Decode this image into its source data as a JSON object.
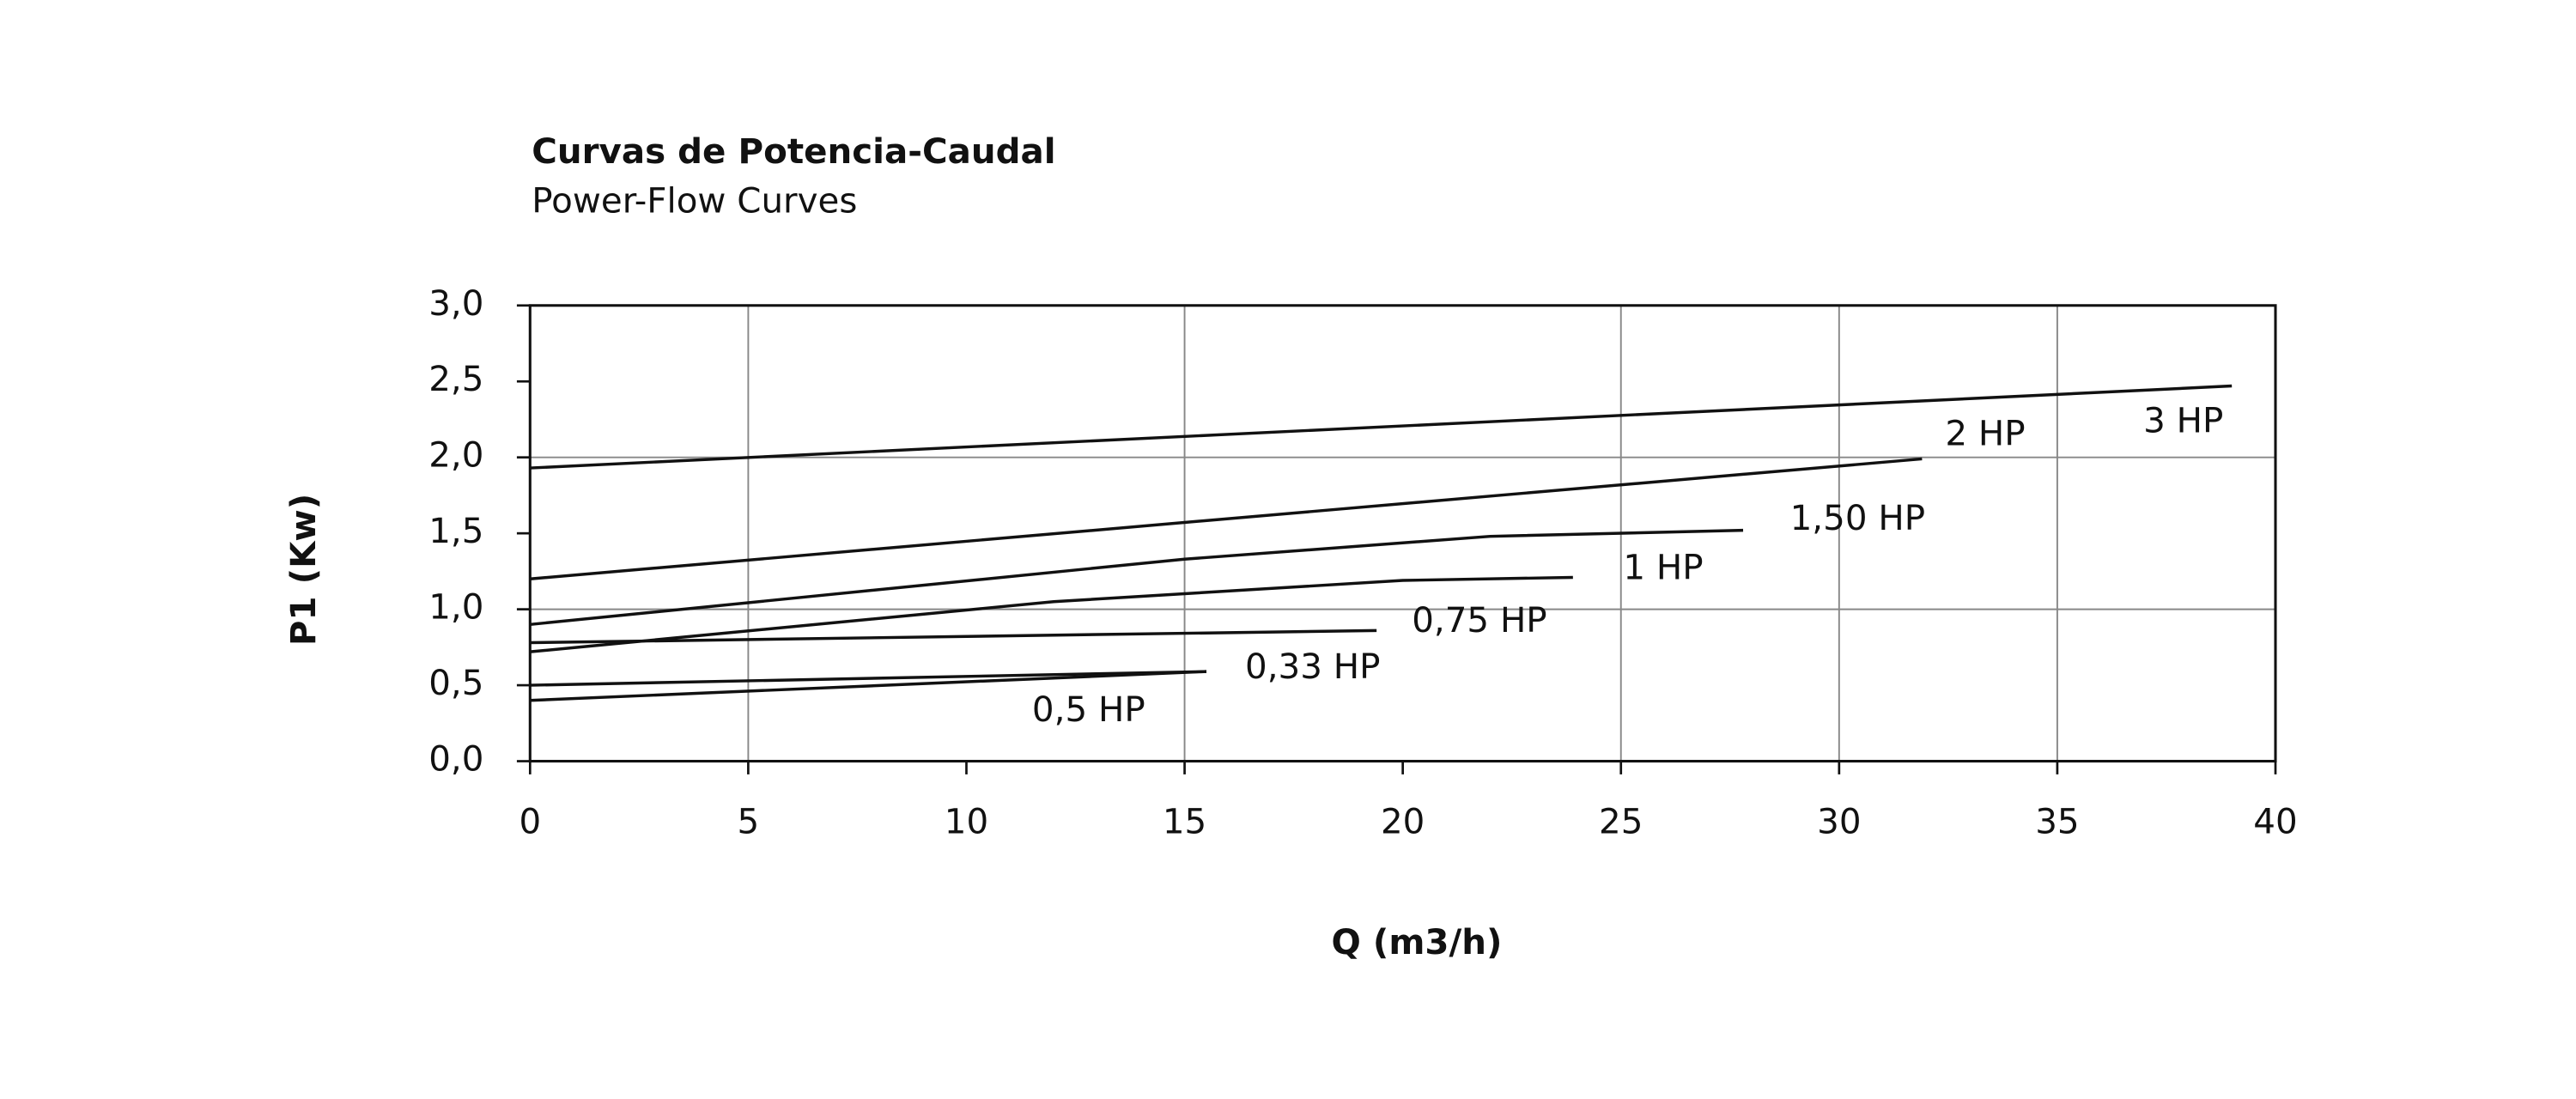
{
  "chart_data": {
    "type": "line",
    "title": "Curvas de Potencia-Caudal",
    "subtitle": "Power-Flow Curves",
    "x_label": "Q (m3/h)",
    "y_label": "P1 (Kw)",
    "xlim": [
      0,
      40
    ],
    "ylim": [
      0,
      3
    ],
    "xticks": [
      0,
      5,
      10,
      15,
      20,
      25,
      30,
      35,
      40
    ],
    "yticks": [
      {
        "value": 0,
        "label": "0,0"
      },
      {
        "value": 0.5,
        "label": "0,5"
      },
      {
        "value": 1,
        "label": "1,0"
      },
      {
        "value": 1.5,
        "label": "1,5"
      },
      {
        "value": 2,
        "label": "2,0"
      },
      {
        "value": 2.5,
        "label": "2,5"
      },
      {
        "value": 3,
        "label": "3,0"
      }
    ],
    "x_grid": [
      5,
      15,
      25,
      30,
      35
    ],
    "y_grid": [
      1,
      2
    ],
    "color": "#111111",
    "series": [
      {
        "name": "3 HP",
        "x": [
          0,
          39
        ],
        "values": [
          1.93,
          2.47
        ]
      },
      {
        "name": "2 HP",
        "x": [
          0,
          31.9
        ],
        "values": [
          1.2,
          1.99
        ]
      },
      {
        "name": "1,50 HP",
        "x": [
          0,
          15,
          22,
          27.8
        ],
        "values": [
          0.9,
          1.33,
          1.48,
          1.52
        ]
      },
      {
        "name": "1 HP",
        "x": [
          0,
          12,
          20,
          23.9
        ],
        "values": [
          0.72,
          1.05,
          1.19,
          1.21
        ]
      },
      {
        "name": "0,75 HP",
        "x": [
          0,
          19.4
        ],
        "values": [
          0.78,
          0.86
        ]
      },
      {
        "name": "0,33 HP",
        "x": [
          0,
          15.5
        ],
        "values": [
          0.5,
          0.59
        ]
      },
      {
        "name": "0,5 HP",
        "x": [
          0,
          15.5
        ],
        "values": [
          0.4,
          0.59
        ]
      }
    ]
  }
}
